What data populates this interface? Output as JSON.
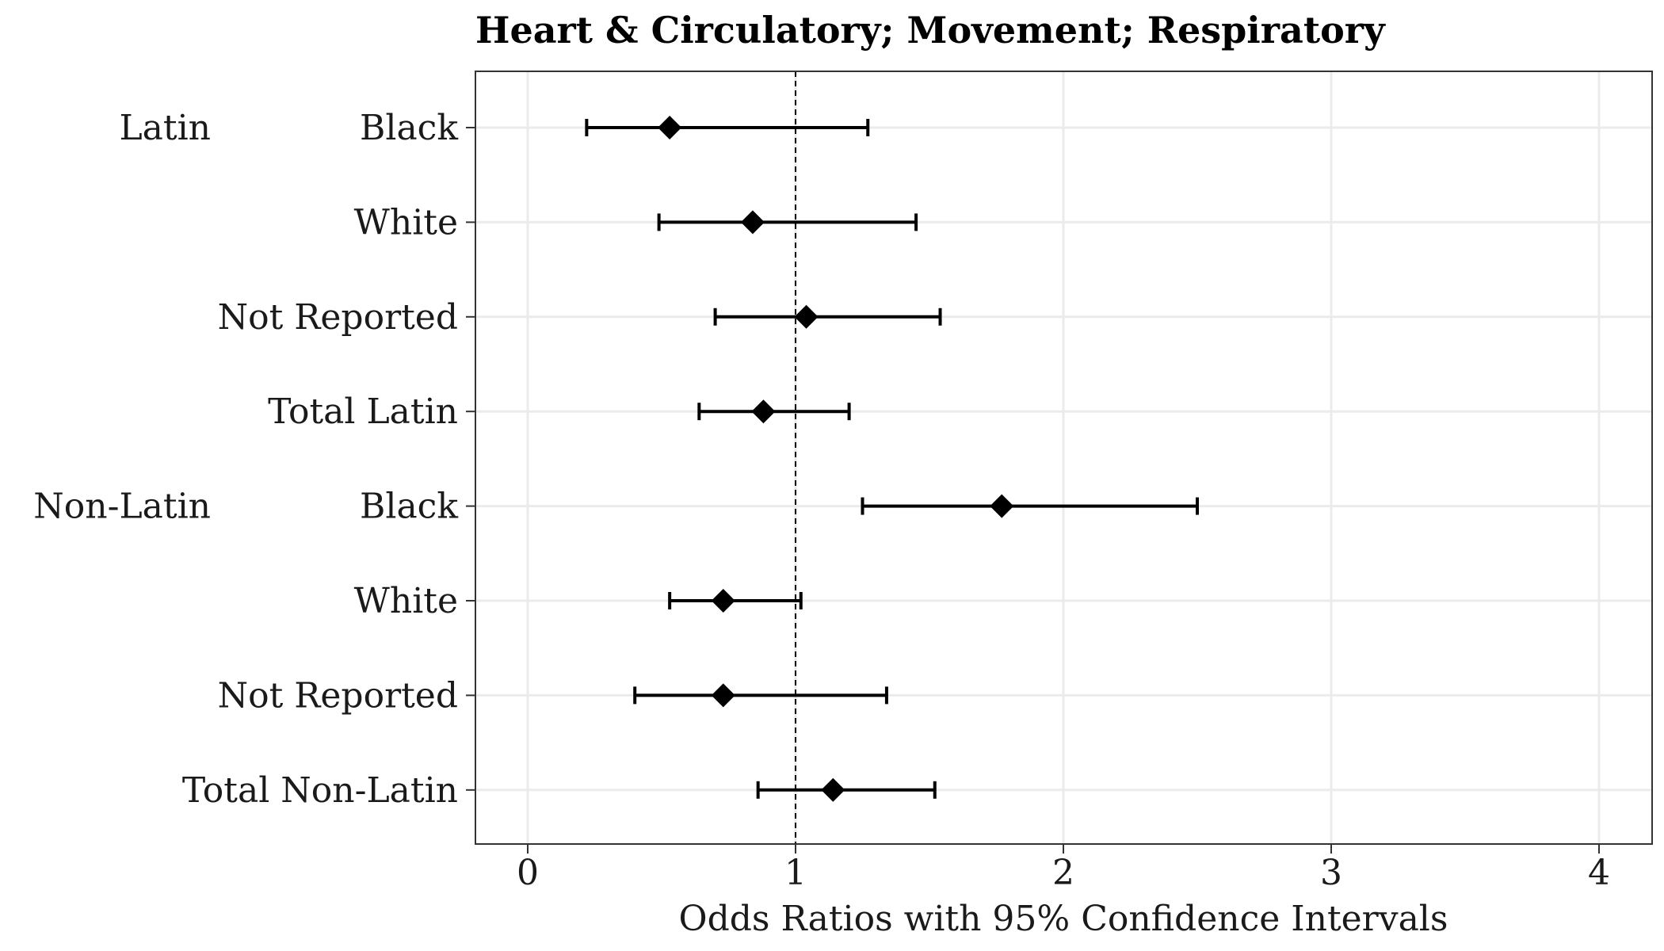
{
  "chart_data": {
    "type": "forest",
    "title": "Heart & Circulatory; Movement; Respiratory",
    "xlabel": "Odds Ratios with 95% Confidence Intervals",
    "ylabel": "",
    "xlim": [
      -0.2,
      4.2
    ],
    "x_ticks": [
      0,
      1,
      2,
      3,
      4
    ],
    "x_tick_labels": [
      "0",
      "1",
      "2",
      "3",
      "4"
    ],
    "reference_line": 1,
    "grid": true,
    "groups": [
      {
        "label": "Latin",
        "rows": [
          0,
          1,
          2,
          3
        ]
      },
      {
        "label": "Non-Latin",
        "rows": [
          4,
          5,
          6,
          7
        ]
      }
    ],
    "rows": [
      {
        "label": "Black",
        "or": 0.53,
        "lower": 0.22,
        "upper": 1.27
      },
      {
        "label": "White",
        "or": 0.84,
        "lower": 0.49,
        "upper": 1.45
      },
      {
        "label": "Not Reported",
        "or": 1.04,
        "lower": 0.7,
        "upper": 1.54
      },
      {
        "label": "Total Latin",
        "or": 0.88,
        "lower": 0.64,
        "upper": 1.2
      },
      {
        "label": "Black",
        "or": 1.77,
        "lower": 1.25,
        "upper": 2.5
      },
      {
        "label": "White",
        "or": 0.73,
        "lower": 0.53,
        "upper": 1.02
      },
      {
        "label": "Not Reported",
        "or": 0.73,
        "lower": 0.4,
        "upper": 1.34
      },
      {
        "label": "Total Non-Latin",
        "or": 1.14,
        "lower": 0.86,
        "upper": 1.52
      }
    ],
    "colors": {
      "points": "#000000",
      "grid": "#ebebeb",
      "panel_border": "#333333"
    }
  }
}
